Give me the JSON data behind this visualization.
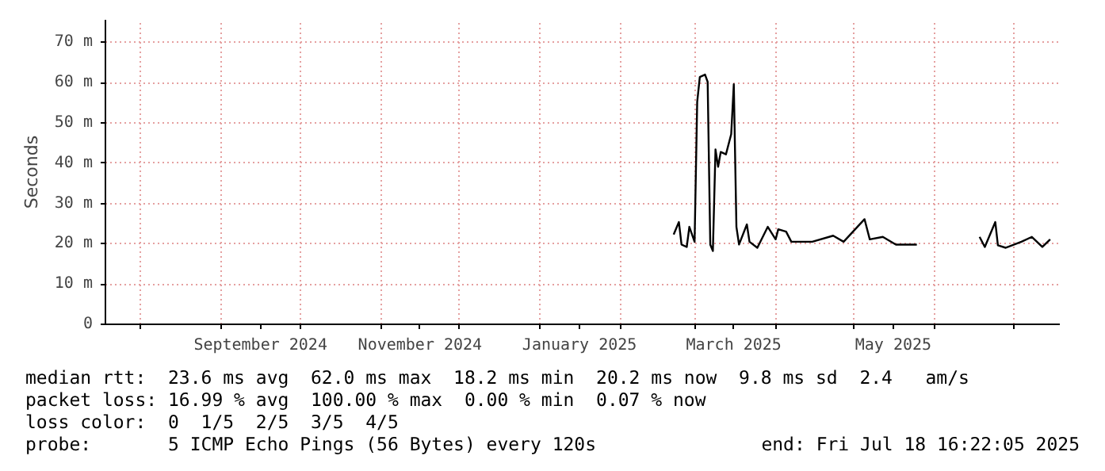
{
  "chart_data": {
    "type": "line",
    "ylabel": "Seconds",
    "xlim": [
      "2024-07-18T16:22",
      "2025-07-18T16:22"
    ],
    "ylim": [
      0,
      75.6
    ],
    "yticks": [
      0,
      {
        "value": 10,
        "label": "10 m"
      },
      {
        "value": 20,
        "label": "20 m"
      },
      {
        "value": 30,
        "label": "30 m"
      },
      {
        "value": 40,
        "label": "40 m"
      },
      {
        "value": 50,
        "label": "50 m"
      },
      {
        "value": 60,
        "label": "60 m"
      },
      {
        "value": 70,
        "label": "70 m"
      }
    ],
    "xticks": [
      {
        "value": "2024-08-01",
        "label": null
      },
      {
        "value": "2024-09-01",
        "label": null
      },
      {
        "value": "2024-09-16",
        "label": "September 2024"
      },
      {
        "value": "2024-10-01",
        "label": null
      },
      {
        "value": "2024-11-01",
        "label": null
      },
      {
        "value": "2024-11-16",
        "label": "November 2024"
      },
      {
        "value": "2024-12-01",
        "label": null
      },
      {
        "value": "2025-01-01",
        "label": null
      },
      {
        "value": "2025-01-16",
        "label": "January 2025"
      },
      {
        "value": "2025-02-01",
        "label": null
      },
      {
        "value": "2025-03-01",
        "label": null
      },
      {
        "value": "2025-03-16",
        "label": "March 2025"
      },
      {
        "value": "2025-04-01",
        "label": null
      },
      {
        "value": "2025-05-01",
        "label": null
      },
      {
        "value": "2025-05-16",
        "label": "May 2025"
      },
      {
        "value": "2025-06-01",
        "label": null
      },
      {
        "value": "2025-07-01",
        "label": null
      }
    ],
    "grid": true,
    "line_style": "solid",
    "marker": "none",
    "x": [
      "2025-02-21",
      "2025-02-23",
      "2025-02-24",
      "2025-02-26",
      "2025-02-27",
      "2025-03-01",
      "2025-03-02",
      "2025-03-03",
      "2025-03-05",
      "2025-03-06",
      "2025-03-07",
      "2025-03-08",
      "2025-03-09",
      "2025-03-10",
      "2025-03-11",
      "2025-03-13",
      "2025-03-15",
      "2025-03-16",
      "2025-03-17",
      "2025-03-18",
      "2025-03-21",
      "2025-03-22",
      "2025-03-25",
      "2025-03-29",
      "2025-04-01",
      "2025-04-02",
      "2025-04-05",
      "2025-04-07",
      "2025-04-15",
      "2025-04-23",
      "2025-04-27",
      "2025-05-05",
      "2025-05-07",
      "2025-05-12",
      "2025-05-17",
      "2025-05-25",
      "2025-06-05",
      "2025-06-18",
      "2025-06-20",
      "2025-06-24",
      "2025-06-25",
      "2025-06-28",
      "2025-07-04",
      "2025-07-08",
      "2025-07-12",
      "2025-07-15"
    ],
    "series": [
      {
        "color": "#000000",
        "values": [
          22.3,
          25.4,
          19.8,
          19.2,
          24.2,
          20.5,
          55.2,
          61.4,
          62.0,
          60.2,
          19.8,
          18.2,
          43.4,
          39.1,
          42.8,
          42.2,
          47.2,
          59.6,
          24.2,
          19.8,
          24.8,
          20.5,
          19.0,
          24.2,
          21.1,
          23.6,
          23.0,
          20.5,
          20.5,
          22.0,
          20.5,
          26.1,
          21.1,
          21.7,
          19.8,
          19.8,
          null,
          21.7,
          19.2,
          25.4,
          19.6,
          19.0,
          20.5,
          21.7,
          19.2,
          21.1
        ]
      }
    ],
    "annotations": [
      "median rtt:  23.6 ms avg  62.0 ms max  18.2 ms min  20.2 ms now  9.8 ms sd  2.4   am/s",
      "packet loss: 16.99 % avg  100.00 % max  0.00 % min  0.07 % now",
      "loss color:  0  1/5  2/5  3/5  4/5",
      "probe:       5 ICMP Echo Pings (56 Bytes) every 120s",
      "end: Fri Jul 18 16:22:05 2025"
    ]
  }
}
